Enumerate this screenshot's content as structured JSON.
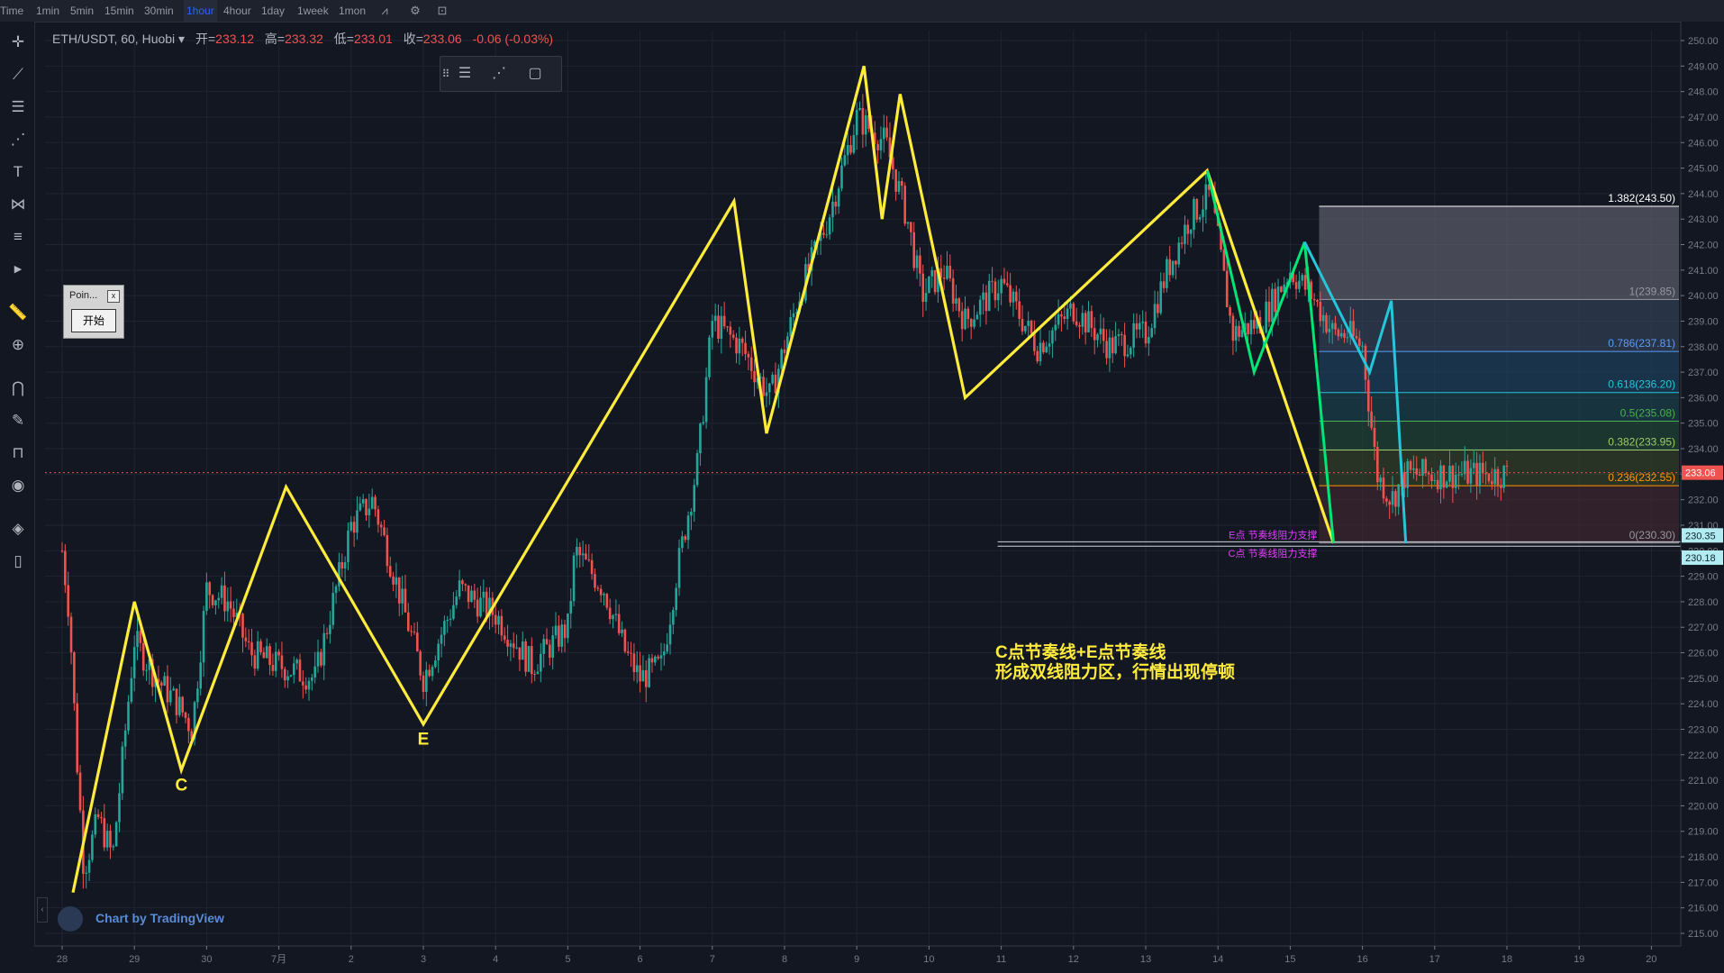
{
  "toolbar": {
    "timeframes": [
      "Time",
      "1min",
      "5min",
      "15min",
      "30min",
      "1hour",
      "4hour",
      "1day",
      "1week",
      "1mon"
    ],
    "active": "1hour"
  },
  "legend": {
    "symbol": "ETH/USDT, 60, Huobi",
    "open_label": "开=",
    "open": "233.12",
    "high_label": "高=",
    "high": "233.32",
    "low_label": "低=",
    "low": "233.01",
    "close_label": "收=",
    "close": "233.06",
    "change": "-0.06 (-0.03%)"
  },
  "popup": {
    "title": "Poin...",
    "close": "x",
    "button": "开始"
  },
  "watermark": "Chart by TradingView",
  "annotation": {
    "line1": "C点节奏线+E点节奏线",
    "line2": "形成双线阻力区，行情出现停顿"
  },
  "colors": {
    "background": "#131722",
    "grid": "#1f2433",
    "up": "#26a69a",
    "down": "#ef5350",
    "zigzag": "#ffeb3b",
    "green_line": "#00e676",
    "cyan_line": "#26c6da",
    "magenta_label": "#e040fb"
  },
  "chart_data": {
    "type": "candlestick",
    "symbol": "ETH/USDT",
    "interval": "60",
    "exchange": "Huobi",
    "x_ticks": [
      "28",
      "29",
      "30",
      "7月",
      "2",
      "3",
      "4",
      "5",
      "6",
      "7",
      "8",
      "9",
      "10",
      "11",
      "12",
      "13",
      "14",
      "15",
      "16",
      "17",
      "18",
      "19",
      "20"
    ],
    "y_ticks": [
      215,
      216,
      217,
      218,
      219,
      220,
      221,
      222,
      223,
      224,
      225,
      226,
      227,
      228,
      229,
      230,
      231,
      232,
      233,
      234,
      235,
      236,
      237,
      238,
      239,
      240,
      241,
      242,
      243,
      244,
      245,
      246,
      247,
      248,
      249,
      250
    ],
    "y_range": [
      215,
      250.3
    ],
    "last_price": "233.06",
    "zigzag_points": [
      [
        28.15,
        216.6
      ],
      [
        29.0,
        228.0
      ],
      [
        29.65,
        221.4
      ],
      [
        31.1,
        232.5
      ],
      [
        33.0,
        223.2
      ],
      [
        37.3,
        243.7
      ],
      [
        37.75,
        234.6
      ],
      [
        39.1,
        249.0
      ],
      [
        39.35,
        243.0
      ],
      [
        39.6,
        247.9
      ],
      [
        40.5,
        236.0
      ],
      [
        43.85,
        244.9
      ],
      [
        45.6,
        230.3
      ]
    ],
    "green_line": [
      [
        43.85,
        244.9
      ],
      [
        44.5,
        237.0
      ],
      [
        45.2,
        242.1
      ],
      [
        45.6,
        230.3
      ]
    ],
    "cyan_line": [
      [
        45.2,
        242.1
      ],
      [
        45.6,
        230.3
      ]
    ],
    "cyan_zigzag": [
      [
        45.2,
        242.1
      ],
      [
        45.6,
        230.3
      ]
    ],
    "point_labels": [
      {
        "text": "C",
        "x": 29.65,
        "y": 220.6
      },
      {
        "text": "E",
        "x": 33.0,
        "y": 222.4
      }
    ],
    "fib_levels": [
      {
        "label": "1.382(243.50)",
        "value": 243.5,
        "color": "#ffffff"
      },
      {
        "label": "1(239.85)",
        "value": 239.85,
        "color": "#9598a1"
      },
      {
        "label": "0.786(237.81)",
        "value": 237.81,
        "color": "#5b9cf6"
      },
      {
        "label": "0.618(236.20)",
        "value": 236.2,
        "color": "#26c6da"
      },
      {
        "label": "0.5(235.08)",
        "value": 235.08,
        "color": "#4caf50"
      },
      {
        "label": "0.382(233.95)",
        "value": 233.95,
        "color": "#9ccc65"
      },
      {
        "label": "0.236(232.55)",
        "value": 232.55,
        "color": "#ff9800"
      },
      {
        "label": "0(230.30)",
        "value": 230.3,
        "color": "#9598a1"
      }
    ],
    "support_lines": [
      {
        "label": "E点 节奏线阻力支撑",
        "value": 230.35,
        "tag": "230.35"
      },
      {
        "label": "C点 节奏线阻力支撑",
        "value": 230.18,
        "tag": "230.18"
      }
    ],
    "candle_anchors": [
      [
        28.0,
        230.0
      ],
      [
        28.1,
        227.5
      ],
      [
        28.2,
        222.0
      ],
      [
        28.3,
        217.5
      ],
      [
        28.5,
        219.5
      ],
      [
        28.7,
        218.0
      ],
      [
        29.0,
        226.5
      ],
      [
        29.3,
        225.0
      ],
      [
        29.6,
        224.0
      ],
      [
        29.8,
        223.0
      ],
      [
        30.0,
        228.5
      ],
      [
        30.3,
        228.0
      ],
      [
        30.6,
        226.0
      ],
      [
        31.0,
        225.5
      ],
      [
        31.5,
        225.0
      ],
      [
        32.0,
        231.0
      ],
      [
        32.3,
        232.0
      ],
      [
        32.7,
        228.0
      ],
      [
        33.0,
        225.0
      ],
      [
        33.5,
        228.5
      ],
      [
        34.0,
        227.5
      ],
      [
        34.5,
        225.5
      ],
      [
        35.0,
        227.0
      ],
      [
        35.1,
        230.0
      ],
      [
        35.5,
        228.5
      ],
      [
        35.8,
        226.0
      ],
      [
        36.0,
        225.0
      ],
      [
        36.3,
        225.5
      ],
      [
        36.5,
        229.0
      ],
      [
        36.8,
        233.5
      ],
      [
        37.0,
        239.0
      ],
      [
        37.4,
        238.0
      ],
      [
        37.8,
        236.0
      ],
      [
        38.2,
        240.0
      ],
      [
        38.6,
        243.0
      ],
      [
        39.0,
        247.0
      ],
      [
        39.4,
        246.0
      ],
      [
        39.7,
        243.0
      ],
      [
        39.9,
        240.0
      ],
      [
        40.2,
        241.0
      ],
      [
        40.5,
        239.0
      ],
      [
        41.0,
        240.5
      ],
      [
        41.5,
        238.0
      ],
      [
        42.0,
        239.5
      ],
      [
        42.5,
        238.0
      ],
      [
        43.0,
        238.5
      ],
      [
        43.3,
        241.0
      ],
      [
        43.6,
        243.0
      ],
      [
        43.9,
        244.0
      ],
      [
        44.2,
        238.5
      ],
      [
        44.6,
        239.0
      ],
      [
        45.0,
        241.0
      ],
      [
        45.3,
        240.0
      ],
      [
        45.6,
        238.5
      ],
      [
        45.8,
        238.5
      ],
      [
        46.0,
        238.0
      ],
      [
        46.2,
        233.0
      ],
      [
        46.4,
        232.0
      ],
      [
        46.6,
        233.0
      ],
      [
        47.0,
        233.0
      ],
      [
        47.4,
        233.0
      ],
      [
        47.7,
        233.0
      ],
      [
        48.0,
        233.0
      ]
    ]
  }
}
